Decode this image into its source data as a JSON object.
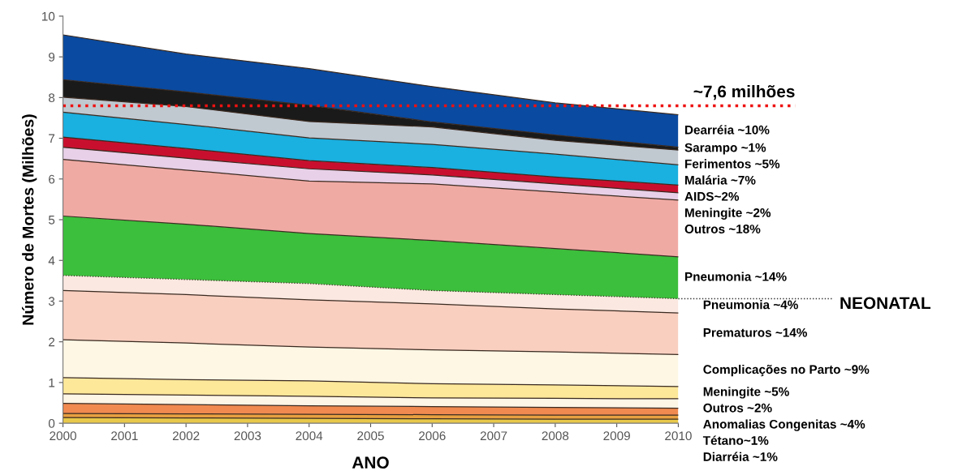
{
  "chart_data": {
    "type": "area",
    "stacked": true,
    "xlabel": "ANO",
    "ylabel": "Número de Mortes (Milhões)",
    "x": [
      2000,
      2002,
      2004,
      2006,
      2008,
      2010
    ],
    "xlim": [
      2000,
      2010
    ],
    "xticks": [
      2000,
      2001,
      2002,
      2003,
      2004,
      2005,
      2006,
      2007,
      2008,
      2009,
      2010
    ],
    "ylim": [
      0,
      10
    ],
    "yticks": [
      0,
      1,
      2,
      3,
      4,
      5,
      6,
      7,
      8,
      9,
      10
    ],
    "grid": false,
    "legend": false,
    "series": [
      {
        "name": "Diarréia ~1%",
        "color": "#e8c84a",
        "values": [
          0.14,
          0.13,
          0.12,
          0.11,
          0.1,
          0.1
        ]
      },
      {
        "name": "Tétano~1%",
        "color": "#e8a040",
        "values": [
          0.1,
          0.1,
          0.1,
          0.1,
          0.1,
          0.1
        ]
      },
      {
        "name": "Anomalias Congenitas ~4%",
        "color": "#f08a50",
        "values": [
          0.25,
          0.23,
          0.21,
          0.2,
          0.19,
          0.17
        ]
      },
      {
        "name": "Outros ~2%",
        "color": "#fdf5e6",
        "values": [
          0.23,
          0.23,
          0.23,
          0.21,
          0.22,
          0.23
        ]
      },
      {
        "name": "Meningite ~5%",
        "color": "#fde89a",
        "values": [
          0.4,
          0.38,
          0.38,
          0.35,
          0.33,
          0.3
        ]
      },
      {
        "name": "Complicações no Parto ~9%",
        "color": "#fdf7e4",
        "values": [
          0.93,
          0.9,
          0.83,
          0.83,
          0.81,
          0.79
        ]
      },
      {
        "name": "Prematuros ~14%",
        "color": "#f9cfc0",
        "values": [
          1.21,
          1.19,
          1.16,
          1.13,
          1.06,
          1.02
        ]
      },
      {
        "name": "Pneumonia ~4%",
        "color": "#fbe8e0",
        "values": [
          0.37,
          0.37,
          0.4,
          0.33,
          0.35,
          0.35
        ],
        "line_style": "dotted"
      },
      {
        "name": "Pneumonia ~14%",
        "color": "#3cbf3c",
        "values": [
          1.46,
          1.36,
          1.23,
          1.23,
          1.13,
          1.03
        ]
      },
      {
        "name": "Outros ~18%",
        "color": "#f0aaa4",
        "values": [
          1.39,
          1.33,
          1.29,
          1.39,
          1.39,
          1.39
        ]
      },
      {
        "name": "Meningite ~2%",
        "color": "#e8d0e8",
        "values": [
          0.3,
          0.29,
          0.3,
          0.22,
          0.2,
          0.18
        ]
      },
      {
        "name": "AIDS~2%",
        "color": "#c8102e",
        "values": [
          0.25,
          0.24,
          0.2,
          0.18,
          0.17,
          0.19
        ]
      },
      {
        "name": "Malária ~7%",
        "color": "#1ab0e0",
        "values": [
          0.61,
          0.59,
          0.56,
          0.57,
          0.56,
          0.5
        ]
      },
      {
        "name": "Ferimentos ~5%",
        "color": "#c0c8d0",
        "values": [
          0.37,
          0.44,
          0.4,
          0.43,
          0.34,
          0.36
        ]
      },
      {
        "name": "Sarampo ~1%",
        "color": "#1a1a1a",
        "values": [
          0.43,
          0.36,
          0.4,
          0.12,
          0.13,
          0.07
        ]
      },
      {
        "name": "Dearréia ~10%",
        "color": "#0a4aa0",
        "values": [
          1.1,
          0.93,
          0.9,
          0.87,
          0.79,
          0.8
        ]
      }
    ],
    "ref_lines": [
      {
        "axis": "y",
        "value": 7.8,
        "label": "~7,6 milhões",
        "color": "#ee1111",
        "line_style": "dotted"
      }
    ],
    "annotations": [
      {
        "text": "NEONATAL",
        "x": 2010,
        "y": 3.06
      }
    ]
  }
}
